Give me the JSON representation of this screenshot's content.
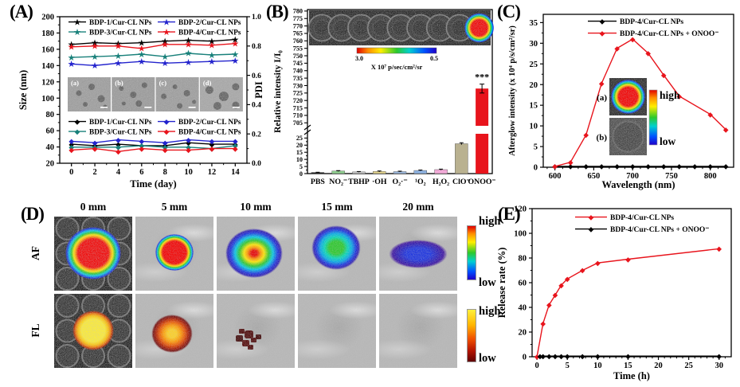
{
  "panels": {
    "a": "(A)",
    "b": "(B)",
    "c": "(C)",
    "d": "(D)",
    "e": "(E)"
  },
  "chart_data": [
    {
      "panel": "A",
      "type": "line",
      "xlabel": "Time (day)",
      "x": [
        0,
        2,
        4,
        6,
        8,
        10,
        12,
        14
      ],
      "xticks": [
        0,
        2,
        4,
        6,
        8,
        10,
        12,
        14
      ],
      "xlim": [
        -1,
        15
      ],
      "left_axis": {
        "label": "Size (nm)",
        "lim": [
          20,
          200
        ],
        "ticks": [
          20,
          40,
          60,
          80,
          100,
          120,
          140,
          160,
          180,
          200
        ]
      },
      "right_axis": {
        "label": "PDI",
        "lim": [
          0,
          1
        ],
        "ticks": [
          0,
          0.2,
          0.4,
          0.6,
          0.8,
          1
        ]
      },
      "size_series": [
        {
          "name": "BDP-1/Cur-CL NPs",
          "color": "#000000",
          "values": [
            166,
            168,
            167,
            168,
            170,
            171,
            170,
            172
          ]
        },
        {
          "name": "BDP-2/Cur-CL NPs",
          "color": "#2323cd",
          "values": [
            142,
            140,
            143,
            145,
            143,
            144,
            145,
            146
          ]
        },
        {
          "name": "BDP-3/Cur-CL NPs",
          "color": "#18807a",
          "values": [
            150,
            151,
            152,
            154,
            151,
            155,
            153,
            154
          ]
        },
        {
          "name": "BDP-4/Cur-CL NPs",
          "color": "#e8141c",
          "values": [
            163,
            164,
            164,
            161,
            166,
            166,
            165,
            167
          ]
        }
      ],
      "pdi_series": [
        {
          "name": "BDP-1/Cur-CL NPs",
          "color": "#000000",
          "values": [
            0.13,
            0.12,
            0.13,
            0.12,
            0.12,
            0.14,
            0.13,
            0.13
          ]
        },
        {
          "name": "BDP-2/Cur-CL NPs",
          "color": "#2323cd",
          "values": [
            0.15,
            0.14,
            0.16,
            0.15,
            0.14,
            0.16,
            0.15,
            0.15
          ]
        },
        {
          "name": "BDP-3/Cur-CL NPs",
          "color": "#18807a",
          "values": [
            0.11,
            0.11,
            0.11,
            0.12,
            0.11,
            0.11,
            0.1,
            0.12
          ]
        },
        {
          "name": "BDP-4/Cur-CL NPs",
          "color": "#e8141c",
          "values": [
            0.09,
            0.1,
            0.08,
            0.1,
            0.09,
            0.09,
            0.1,
            0.1
          ]
        }
      ],
      "tem_inset_labels": [
        "(a)",
        "(b)",
        "(c)",
        "(d)"
      ]
    },
    {
      "panel": "B",
      "type": "bar",
      "ylabel": "Relative intensity I/I₀",
      "categories": [
        "PBS",
        "NO₂⁻",
        "TBHP",
        "·OH",
        "O₂·⁻",
        "¹O₂",
        "H₂O₂",
        "ClO⁻",
        "ONOO⁻"
      ],
      "values": [
        0.8,
        1.8,
        1.2,
        1.5,
        1.4,
        2.2,
        2.8,
        21,
        728
      ],
      "errors": [
        0.15,
        0.3,
        0.25,
        0.35,
        0.3,
        0.3,
        0.35,
        0.7,
        3
      ],
      "bar_colors": [
        "#1a1a1a",
        "#90ce90",
        "#c8c8c8",
        "#e3d48e",
        "#9db9de",
        "#8fb4e3",
        "#f2aad8",
        "#b9b190",
        "#e8141c"
      ],
      "axis_break": {
        "lower_lim": [
          0,
          28
        ],
        "lower_ticks": [
          0,
          5,
          10,
          15,
          20,
          25
        ],
        "upper_lim": [
          703,
          781
        ],
        "upper_ticks": [
          705,
          710,
          715,
          720,
          725,
          730,
          735,
          740,
          745,
          750,
          755,
          760,
          765,
          770,
          775,
          780
        ]
      },
      "significance": {
        "category": "ONOO⁻",
        "label": "***"
      },
      "inset": {
        "wells": 9,
        "hot_well_index": 8,
        "colorbar": {
          "left": "3.0",
          "right": "0.5",
          "label": "X 10⁷ p/sec/cm²/sr"
        }
      }
    },
    {
      "panel": "C",
      "type": "line",
      "xlabel": "Wavelength (nm)",
      "ylabel": "Afterglow intensity  (x 10⁴ p/s/cm²/sr)",
      "xlim": [
        585,
        830
      ],
      "xticks": [
        600,
        650,
        700,
        750,
        800
      ],
      "ylim": [
        0,
        37
      ],
      "yticks": [
        0,
        5,
        10,
        15,
        20,
        25,
        30,
        35
      ],
      "series": [
        {
          "name": "BDP-4/Cur-CL NPs",
          "color": "#000000",
          "marker": "diamond",
          "x": [
            600,
            620,
            640,
            660,
            680,
            700,
            720,
            740,
            760,
            780,
            800,
            820
          ],
          "y": [
            0.2,
            0.2,
            0.2,
            0.2,
            0.2,
            0.2,
            0.2,
            0.2,
            0.2,
            0.2,
            0.2,
            0.2
          ]
        },
        {
          "name": "BDP-4/Cur-CL NPs + ONOO⁻",
          "color": "#e8141c",
          "marker": "diamond",
          "x": [
            600,
            620,
            640,
            660,
            680,
            700,
            720,
            740,
            760,
            800,
            820
          ],
          "y": [
            0.2,
            1.2,
            7.8,
            20.3,
            28.8,
            31.0,
            27.6,
            22.3,
            17.2,
            12.8,
            9.1
          ]
        }
      ],
      "insets": [
        {
          "label": "(a)",
          "image": "hot-well"
        },
        {
          "label": "(b)",
          "image": "gray-well"
        }
      ],
      "colorbar": {
        "top": "high",
        "bottom": "low"
      }
    },
    {
      "panel": "E",
      "type": "line",
      "xlabel": "Time (h)",
      "ylabel": "Release rate (%)",
      "xlim": [
        -0.8,
        32
      ],
      "xticks": [
        0,
        5,
        10,
        15,
        20,
        25,
        30
      ],
      "ylim": [
        0,
        120
      ],
      "yticks": [
        0,
        20,
        40,
        60,
        80,
        100,
        120
      ],
      "series": [
        {
          "name": "BDP-4/Cur-CL NPs",
          "color": "#e8141c",
          "marker": "diamond",
          "x": [
            0,
            1,
            2,
            3,
            4,
            5,
            7.5,
            10,
            15,
            30
          ],
          "y": [
            0,
            27,
            42,
            50,
            58,
            63,
            70,
            76,
            79,
            87.5
          ]
        },
        {
          "name": "BDP-4/Cur-CL NPs + ONOO⁻",
          "color": "#000000",
          "marker": "diamond",
          "x": [
            0.5,
            1,
            2,
            3,
            4,
            5,
            7.5,
            10,
            15,
            30
          ],
          "y": [
            0.5,
            0.5,
            0.5,
            0.5,
            0.5,
            0.5,
            0.5,
            0.5,
            0.5,
            0.5
          ]
        }
      ]
    }
  ],
  "panel_d": {
    "columns": [
      "0 mm",
      "5 mm",
      "10 mm",
      "15 mm",
      "20 mm"
    ],
    "rows": [
      "AF",
      "FL"
    ],
    "cells": {
      "AF": [
        "wellplate:af-hot",
        "tissue:af-hot-small",
        "tissue:af-mid",
        "tissue:af-cool",
        "tissue:af-blue"
      ],
      "FL": [
        "wellplate:fl-hot",
        "tissue:fl-mid",
        "tissue:fl-specks",
        "tissue:none",
        "tissue:none"
      ]
    },
    "colorbars": {
      "af": {
        "top": "high",
        "bottom": "low"
      },
      "fl": {
        "top": "high",
        "bottom": "low"
      }
    }
  }
}
